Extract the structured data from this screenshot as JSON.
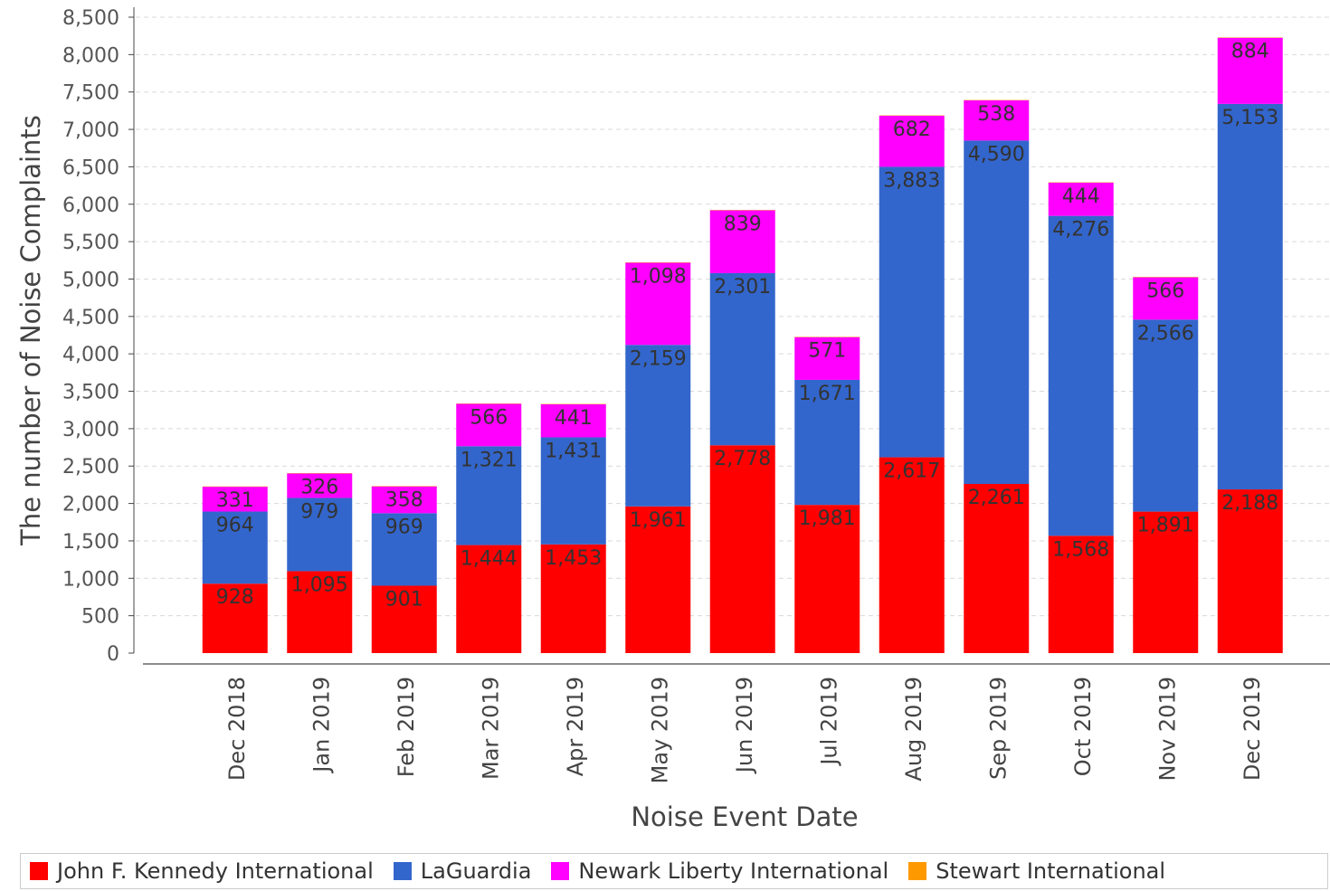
{
  "chart_data": {
    "type": "bar",
    "stacked": true,
    "categories": [
      "Dec 2018",
      "Jan 2019",
      "Feb 2019",
      "Mar 2019",
      "Apr 2019",
      "May 2019",
      "Jun 2019",
      "Jul 2019",
      "Aug 2019",
      "Sep 2019",
      "Oct 2019",
      "Nov 2019",
      "Dec 2019"
    ],
    "series": [
      {
        "name": "John F. Kennedy International",
        "color": "#ff0000",
        "values": [
          928,
          1095,
          901,
          1444,
          1453,
          1961,
          2778,
          1981,
          2617,
          2261,
          1568,
          1891,
          2188
        ]
      },
      {
        "name": "LaGuardia",
        "color": "#3366cc",
        "values": [
          964,
          979,
          969,
          1321,
          1431,
          2159,
          2301,
          1671,
          3883,
          4590,
          4276,
          2566,
          5153
        ]
      },
      {
        "name": "Newark Liberty International",
        "color": "#ff00ff",
        "values": [
          331,
          326,
          358,
          566,
          441,
          1098,
          839,
          571,
          682,
          538,
          444,
          566,
          884
        ]
      },
      {
        "name": "Stewart International",
        "color": "#ff9900",
        "values": [
          5,
          5,
          5,
          5,
          5,
          5,
          5,
          5,
          5,
          5,
          5,
          5,
          5
        ]
      }
    ],
    "xlabel": "Noise Event Date",
    "ylabel": "The number of Noise Complaints",
    "ylim": [
      0,
      8500
    ],
    "yticks": [
      0,
      500,
      1000,
      1500,
      2000,
      2500,
      3000,
      3500,
      4000,
      4500,
      5000,
      5500,
      6000,
      6500,
      7000,
      7500,
      8000,
      8500
    ],
    "grid": true,
    "legend_position": "bottom",
    "data_labels": true
  }
}
